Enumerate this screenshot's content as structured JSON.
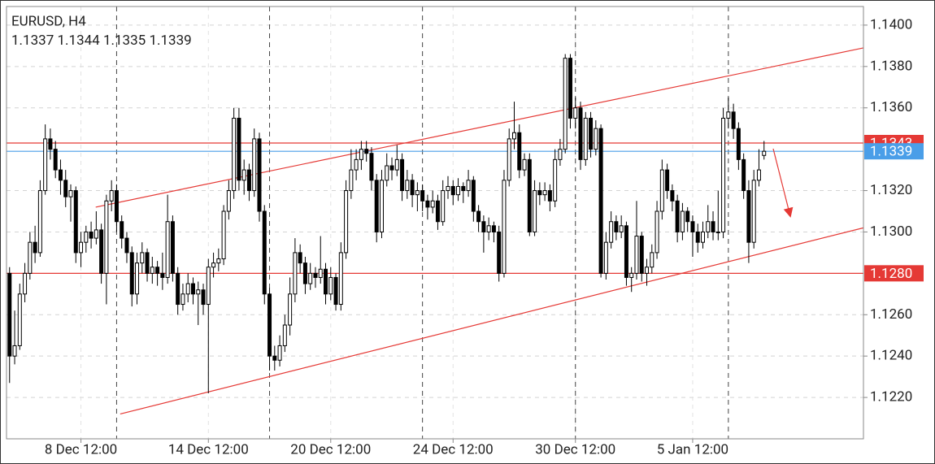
{
  "chart_data": {
    "type": "candlestick",
    "title": "EURUSD, H4",
    "xlim": [
      -0.6,
      167.5
    ],
    "ylim": [
      1.12,
      1.1409
    ],
    "yticks": [
      {
        "value": 1.14,
        "label": "1.1400"
      },
      {
        "value": 1.138,
        "label": "1.1380"
      },
      {
        "value": 1.136,
        "label": "1.1360"
      },
      {
        "value": 1.132,
        "label": "1.1320"
      },
      {
        "value": 1.13,
        "label": "1.1300"
      },
      {
        "value": 1.126,
        "label": "1.1260"
      },
      {
        "value": 1.124,
        "label": "1.1240"
      },
      {
        "value": 1.122,
        "label": "1.1220"
      }
    ],
    "xticks": [
      {
        "value": 14,
        "label": "8 Dec 12:00"
      },
      {
        "value": 39,
        "label": "14 Dec 12:00"
      },
      {
        "value": 63,
        "label": "20 Dec 12:00"
      },
      {
        "value": 87,
        "label": "24 Dec 12:00"
      },
      {
        "value": 111,
        "label": "30 Dec 12:00"
      },
      {
        "value": 134,
        "label": "5 Jan 12:00"
      }
    ],
    "separators": [
      21,
      51,
      81,
      111,
      141
    ],
    "grid": true,
    "up_color": "#ffffff",
    "down_color": "#000000",
    "levels": [
      {
        "value": 1.1343,
        "color": "#e53935"
      },
      {
        "value": {
          "value": 1.128,
          "label": "1.1280"
        },
        "color": "#e53935"
      }
    ],
    "bid": {
      "value": 1.1339,
      "color": "#4a9ee8"
    },
    "trend_lines": [
      {
        "start": [
          16.9,
          1.1312
        ],
        "end": [
          167.5,
          1.1389
        ],
        "color": "#e53935"
      },
      {
        "start": [
          21.7,
          1.1212
        ],
        "end": [
          167.5,
          1.1302
        ],
        "color": "#e53935"
      }
    ],
    "values": [
      [
        1.128,
        1.1283,
        1.1227,
        1.124
      ],
      [
        1.124,
        1.1262,
        1.1236,
        1.1245
      ],
      [
        1.1245,
        1.1275,
        1.1243,
        1.127
      ],
      [
        1.127,
        1.1285,
        1.1266,
        1.128
      ],
      [
        1.128,
        1.13,
        1.1277,
        1.1295
      ],
      [
        1.1295,
        1.1303,
        1.1285,
        1.129
      ],
      [
        1.129,
        1.1325,
        1.1288,
        1.132
      ],
      [
        1.132,
        1.1352,
        1.1318,
        1.1345
      ],
      [
        1.1345,
        1.135,
        1.1335,
        1.134
      ],
      [
        1.134,
        1.1344,
        1.1326,
        1.133
      ],
      [
        1.133,
        1.1335,
        1.1318,
        1.1325
      ],
      [
        1.1325,
        1.133,
        1.1312,
        1.1317
      ],
      [
        1.1317,
        1.1323,
        1.1305,
        1.132
      ],
      [
        1.132,
        1.1322,
        1.1285,
        1.129
      ],
      [
        1.129,
        1.13,
        1.1283,
        1.1295
      ],
      [
        1.1295,
        1.1303,
        1.129,
        1.13
      ],
      [
        1.13,
        1.1305,
        1.1292,
        1.1297
      ],
      [
        1.1297,
        1.131,
        1.1294,
        1.1301
      ],
      [
        1.1301,
        1.1304,
        1.1275,
        1.128
      ],
      [
        1.128,
        1.1318,
        1.1265,
        1.1315
      ],
      [
        1.1315,
        1.1325,
        1.131,
        1.132
      ],
      [
        1.132,
        1.1323,
        1.13,
        1.1305
      ],
      [
        1.1305,
        1.1308,
        1.1292,
        1.1297
      ],
      [
        1.1297,
        1.13,
        1.1285,
        1.129
      ],
      [
        1.129,
        1.1293,
        1.1264,
        1.127
      ],
      [
        1.127,
        1.129,
        1.1265,
        1.1285
      ],
      [
        1.1285,
        1.1295,
        1.128,
        1.129
      ],
      [
        1.129,
        1.1292,
        1.1276,
        1.128
      ],
      [
        1.128,
        1.1288,
        1.1275,
        1.1283
      ],
      [
        1.1283,
        1.1286,
        1.1274,
        1.128
      ],
      [
        1.128,
        1.129,
        1.1272,
        1.1278
      ],
      [
        1.1278,
        1.1318,
        1.1275,
        1.1305
      ],
      [
        1.1305,
        1.1308,
        1.1276,
        1.128
      ],
      [
        1.128,
        1.1283,
        1.126,
        1.1265
      ],
      [
        1.1265,
        1.1275,
        1.1262,
        1.127
      ],
      [
        1.127,
        1.128,
        1.1266,
        1.1275
      ],
      [
        1.1275,
        1.1278,
        1.1265,
        1.127
      ],
      [
        1.127,
        1.1276,
        1.1255,
        1.1272
      ],
      [
        1.1272,
        1.1275,
        1.126,
        1.1265
      ],
      [
        1.1265,
        1.1287,
        1.1222,
        1.1283
      ],
      [
        1.1283,
        1.129,
        1.1278,
        1.1285
      ],
      [
        1.1285,
        1.1292,
        1.1281,
        1.1287
      ],
      [
        1.1287,
        1.1313,
        1.1284,
        1.131
      ],
      [
        1.131,
        1.1325,
        1.1306,
        1.132
      ],
      [
        1.132,
        1.136,
        1.1316,
        1.1355
      ],
      [
        1.1355,
        1.136,
        1.132,
        1.1325
      ],
      [
        1.1325,
        1.1335,
        1.1318,
        1.133
      ],
      [
        1.133,
        1.1333,
        1.1315,
        1.132
      ],
      [
        1.132,
        1.135,
        1.1317,
        1.1345
      ],
      [
        1.1345,
        1.1348,
        1.1305,
        1.131
      ],
      [
        1.131,
        1.1313,
        1.1265,
        1.127
      ],
      [
        1.127,
        1.1273,
        1.1233,
        1.124
      ],
      [
        1.124,
        1.1245,
        1.1233,
        1.1238
      ],
      [
        1.1238,
        1.125,
        1.1235,
        1.1245
      ],
      [
        1.1245,
        1.126,
        1.1242,
        1.1255
      ],
      [
        1.1255,
        1.1278,
        1.125,
        1.127
      ],
      [
        1.127,
        1.1297,
        1.1266,
        1.129
      ],
      [
        1.129,
        1.1294,
        1.128,
        1.1285
      ],
      [
        1.1285,
        1.1288,
        1.127,
        1.1275
      ],
      [
        1.1275,
        1.1285,
        1.1272,
        1.128
      ],
      [
        1.128,
        1.1283,
        1.1273,
        1.1278
      ],
      [
        1.1278,
        1.1298,
        1.1275,
        1.1282
      ],
      [
        1.1282,
        1.1285,
        1.1265,
        1.127
      ],
      [
        1.127,
        1.1283,
        1.1267,
        1.1278
      ],
      [
        1.1278,
        1.128,
        1.1262,
        1.1265
      ],
      [
        1.1265,
        1.1295,
        1.1262,
        1.129
      ],
      [
        1.129,
        1.1325,
        1.1287,
        1.132
      ],
      [
        1.132,
        1.134,
        1.1316,
        1.133
      ],
      [
        1.133,
        1.134,
        1.1325,
        1.1335
      ],
      [
        1.1335,
        1.1344,
        1.133,
        1.134
      ],
      [
        1.134,
        1.1344,
        1.1334,
        1.1338
      ],
      [
        1.1338,
        1.1341,
        1.132,
        1.1325
      ],
      [
        1.1325,
        1.1328,
        1.1295,
        1.13
      ],
      [
        1.13,
        1.133,
        1.1297,
        1.1325
      ],
      [
        1.1325,
        1.1338,
        1.1322,
        1.1332
      ],
      [
        1.1332,
        1.1336,
        1.1325,
        1.133
      ],
      [
        1.133,
        1.1342,
        1.1327,
        1.1335
      ],
      [
        1.1335,
        1.1338,
        1.1315,
        1.132
      ],
      [
        1.132,
        1.133,
        1.1316,
        1.1325
      ],
      [
        1.1325,
        1.1328,
        1.1312,
        1.1318
      ],
      [
        1.1318,
        1.1324,
        1.131,
        1.132
      ],
      [
        1.132,
        1.1323,
        1.131,
        1.1315
      ],
      [
        1.1315,
        1.1318,
        1.1306,
        1.1312
      ],
      [
        1.1312,
        1.132,
        1.1309,
        1.1315
      ],
      [
        1.1315,
        1.1318,
        1.1301,
        1.1305
      ],
      [
        1.1305,
        1.1325,
        1.1303,
        1.132
      ],
      [
        1.132,
        1.1327,
        1.1316,
        1.1322
      ],
      [
        1.1322,
        1.1325,
        1.1313,
        1.1318
      ],
      [
        1.1318,
        1.1326,
        1.1315,
        1.1322
      ],
      [
        1.1322,
        1.1324,
        1.1314,
        1.132
      ],
      [
        1.132,
        1.133,
        1.1317,
        1.1325
      ],
      [
        1.1325,
        1.1327,
        1.1305,
        1.131
      ],
      [
        1.131,
        1.1313,
        1.13,
        1.1305
      ],
      [
        1.1305,
        1.1308,
        1.129,
        1.13
      ],
      [
        1.13,
        1.1307,
        1.1296,
        1.1303
      ],
      [
        1.1303,
        1.1305,
        1.1295,
        1.13
      ],
      [
        1.13,
        1.1303,
        1.1276,
        1.128
      ],
      [
        1.128,
        1.133,
        1.1278,
        1.1325
      ],
      [
        1.1325,
        1.135,
        1.1322,
        1.1345
      ],
      [
        1.1345,
        1.1363,
        1.134,
        1.1348
      ],
      [
        1.1348,
        1.1352,
        1.1326,
        1.133
      ],
      [
        1.133,
        1.1338,
        1.1327,
        1.1335
      ],
      [
        1.1335,
        1.1338,
        1.1298,
        1.13
      ],
      [
        1.13,
        1.1325,
        1.1298,
        1.132
      ],
      [
        1.132,
        1.1324,
        1.1313,
        1.1318
      ],
      [
        1.1318,
        1.1324,
        1.1315,
        1.132
      ],
      [
        1.132,
        1.1323,
        1.131,
        1.1315
      ],
      [
        1.1315,
        1.134,
        1.1312,
        1.1335
      ],
      [
        1.1335,
        1.1345,
        1.1332,
        1.134
      ],
      [
        1.134,
        1.1386,
        1.1338,
        1.1384
      ],
      [
        1.1384,
        1.1386,
        1.135,
        1.1355
      ],
      [
        1.1355,
        1.1365,
        1.135,
        1.136
      ],
      [
        1.136,
        1.1363,
        1.133,
        1.1335
      ],
      [
        1.1335,
        1.1358,
        1.1332,
        1.1355
      ],
      [
        1.1355,
        1.1358,
        1.1336,
        1.134
      ],
      [
        1.134,
        1.1354,
        1.1337,
        1.135
      ],
      [
        1.135,
        1.1352,
        1.1278,
        1.128
      ],
      [
        1.128,
        1.13,
        1.1277,
        1.1295
      ],
      [
        1.1295,
        1.131,
        1.1292,
        1.1305
      ],
      [
        1.1305,
        1.1308,
        1.1296,
        1.13
      ],
      [
        1.13,
        1.1308,
        1.1297,
        1.1303
      ],
      [
        1.1303,
        1.1305,
        1.1274,
        1.1278
      ],
      [
        1.1278,
        1.1283,
        1.1271,
        1.128
      ],
      [
        1.128,
        1.1315,
        1.1277,
        1.1298
      ],
      [
        1.1298,
        1.13,
        1.1276,
        1.128
      ],
      [
        1.128,
        1.1287,
        1.1274,
        1.1283
      ],
      [
        1.1283,
        1.1294,
        1.128,
        1.129
      ],
      [
        1.129,
        1.1315,
        1.1287,
        1.131
      ],
      [
        1.131,
        1.1335,
        1.1306,
        1.133
      ],
      [
        1.133,
        1.1333,
        1.1316,
        1.132
      ],
      [
        1.132,
        1.1323,
        1.131,
        1.1315
      ],
      [
        1.1315,
        1.1318,
        1.1295,
        1.13
      ],
      [
        1.13,
        1.1314,
        1.1296,
        1.131
      ],
      [
        1.131,
        1.1312,
        1.13,
        1.1305
      ],
      [
        1.1305,
        1.1308,
        1.1288,
        1.13
      ],
      [
        1.13,
        1.1304,
        1.129,
        1.1295
      ],
      [
        1.1295,
        1.1305,
        1.1292,
        1.13
      ],
      [
        1.13,
        1.1313,
        1.1297,
        1.1305
      ],
      [
        1.1305,
        1.131,
        1.1296,
        1.13
      ],
      [
        1.13,
        1.132,
        1.1296,
        1.13
      ],
      [
        1.13,
        1.136,
        1.1297,
        1.1355
      ],
      [
        1.1355,
        1.1365,
        1.135,
        1.1358
      ],
      [
        1.1358,
        1.1362,
        1.1345,
        1.135
      ],
      [
        1.135,
        1.1353,
        1.133,
        1.1335
      ],
      [
        1.1335,
        1.1338,
        1.1316,
        1.132
      ],
      [
        1.132,
        1.1325,
        1.1285,
        1.1295
      ],
      [
        1.1295,
        1.133,
        1.1292,
        1.1325
      ],
      [
        1.1325,
        1.134,
        1.1322,
        1.133
      ],
      [
        1.1337,
        1.1344,
        1.1335,
        1.1339
      ]
    ]
  }
}
